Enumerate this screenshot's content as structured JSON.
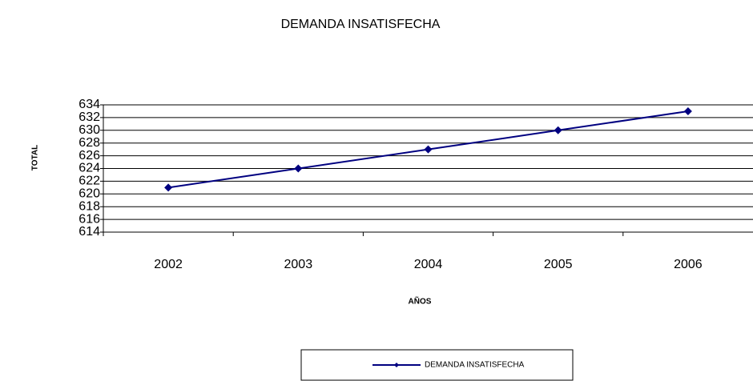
{
  "chart_data": {
    "type": "line",
    "title": "DEMANDA  INSATISFECHA",
    "x_label": "AÑOS",
    "y_label": "TOTAL",
    "categories": [
      "2002",
      "2003",
      "2004",
      "2005",
      "2006"
    ],
    "series": [
      {
        "name": "DEMANDA  INSATISFECHA",
        "color": "#000080",
        "values": [
          621,
          624,
          627,
          630,
          633
        ]
      }
    ],
    "ylim": [
      614,
      634
    ],
    "yticks": [
      614,
      616,
      618,
      620,
      622,
      624,
      626,
      628,
      630,
      632,
      634
    ],
    "grid": true,
    "legend": "bottom"
  }
}
